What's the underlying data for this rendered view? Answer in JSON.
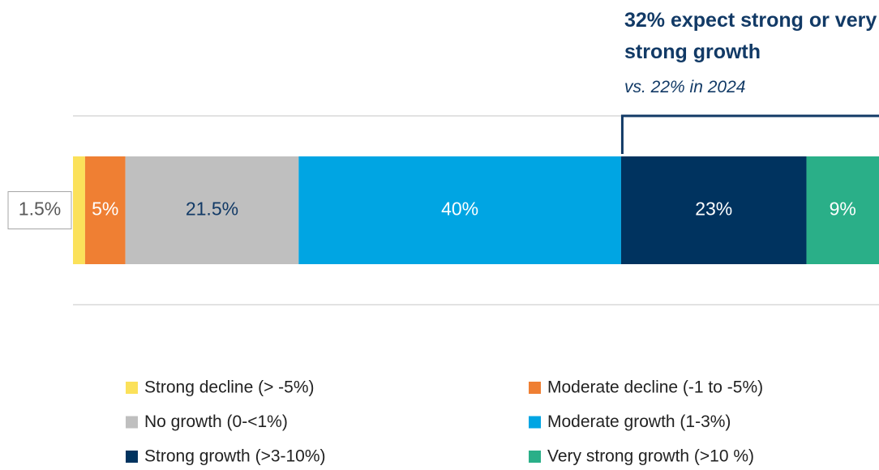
{
  "chart_data": {
    "type": "stacked_bar",
    "annotation": {
      "title": "32% expect strong or very strong growth",
      "subtitle": "vs. 22% in 2024"
    },
    "xlim": [
      0,
      100
    ],
    "series": [
      {
        "name": "Strong decline (> -5%)",
        "color": "#fbe15a",
        "label_color": "#595959",
        "label_position": "outside",
        "values": [
          1.5
        ],
        "value_labels": [
          "1.5%"
        ]
      },
      {
        "name": "Moderate decline (-1 to -5%)",
        "color": "#ef7f33",
        "label_color": "#ffffff",
        "values": [
          5
        ],
        "value_labels": [
          "5%"
        ]
      },
      {
        "name": "No growth (0-<1%)",
        "color": "#bfbfbf",
        "label_color": "#123a66",
        "values": [
          21.5
        ],
        "value_labels": [
          "21.5%"
        ]
      },
      {
        "name": "Moderate growth (1-3%)",
        "color": "#00a5e3",
        "label_color": "#ffffff",
        "values": [
          40
        ],
        "value_labels": [
          "40%"
        ]
      },
      {
        "name": "Strong growth (>3-10%)",
        "color": "#00335f",
        "label_color": "#ffffff",
        "values": [
          23
        ],
        "value_labels": [
          "23%"
        ]
      },
      {
        "name": "Very strong growth (>10 %)",
        "color": "#2aaf88",
        "label_color": "#ffffff",
        "values": [
          9
        ],
        "value_labels": [
          "9%"
        ]
      }
    ]
  }
}
